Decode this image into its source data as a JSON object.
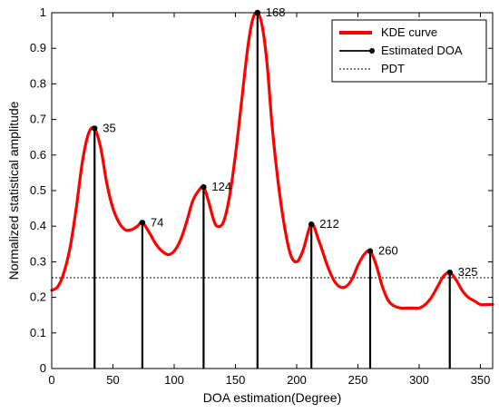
{
  "chart_data": {
    "type": "line",
    "title": "",
    "xlabel": "DOA estimation(Degree)",
    "ylabel": "Normalized statistical amplitude",
    "xlim": [
      0,
      360
    ],
    "ylim": [
      0,
      1
    ],
    "x_ticks": [
      "0",
      "50",
      "100",
      "150",
      "200",
      "250",
      "300",
      "350"
    ],
    "y_ticks": [
      "0",
      "0.1",
      "0.2",
      "0.3",
      "0.4",
      "0.5",
      "0.6",
      "0.7",
      "0.8",
      "0.9",
      "1"
    ],
    "grid": false,
    "legend_position": "top-right",
    "series": [
      {
        "name": "KDE curve",
        "color": "#ff0000",
        "x": [
          0,
          5,
          10,
          15,
          20,
          25,
          30,
          35,
          40,
          45,
          50,
          55,
          60,
          65,
          70,
          74,
          80,
          85,
          90,
          95,
          100,
          105,
          110,
          115,
          120,
          124,
          128,
          132,
          135,
          140,
          145,
          150,
          155,
          160,
          164,
          168,
          172,
          176,
          180,
          185,
          190,
          195,
          200,
          205,
          212,
          218,
          225,
          230,
          235,
          240,
          245,
          250,
          255,
          260,
          265,
          270,
          275,
          280,
          285,
          290,
          295,
          300,
          305,
          310,
          315,
          320,
          325,
          330,
          335,
          340,
          345,
          350,
          355,
          360
        ],
        "y": [
          0.22,
          0.23,
          0.27,
          0.34,
          0.45,
          0.58,
          0.66,
          0.675,
          0.62,
          0.52,
          0.45,
          0.41,
          0.39,
          0.39,
          0.4,
          0.41,
          0.38,
          0.35,
          0.33,
          0.32,
          0.33,
          0.36,
          0.41,
          0.47,
          0.5,
          0.51,
          0.47,
          0.42,
          0.4,
          0.41,
          0.48,
          0.6,
          0.75,
          0.9,
          0.98,
          1.0,
          0.96,
          0.85,
          0.68,
          0.52,
          0.4,
          0.32,
          0.3,
          0.33,
          0.405,
          0.36,
          0.29,
          0.25,
          0.23,
          0.23,
          0.25,
          0.29,
          0.32,
          0.33,
          0.29,
          0.23,
          0.19,
          0.175,
          0.17,
          0.17,
          0.17,
          0.17,
          0.18,
          0.2,
          0.23,
          0.26,
          0.27,
          0.25,
          0.22,
          0.2,
          0.19,
          0.18,
          0.18,
          0.18
        ]
      },
      {
        "name": "Estimated DOA",
        "type": "stem",
        "color": "#000000",
        "x": [
          35,
          74,
          124,
          168,
          212,
          260,
          325
        ],
        "y": [
          0.675,
          0.41,
          0.51,
          1.0,
          0.405,
          0.33,
          0.27
        ],
        "labels": [
          "35",
          "74",
          "124",
          "168",
          "212",
          "260",
          "325"
        ]
      },
      {
        "name": "PDT",
        "type": "hline",
        "color": "#000000",
        "y": 0.255
      }
    ]
  }
}
